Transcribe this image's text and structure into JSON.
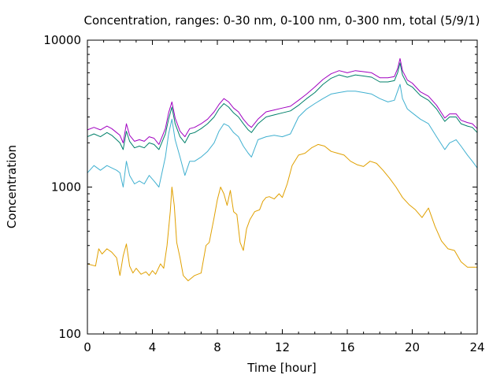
{
  "chart_data": {
    "type": "line",
    "title": "Concentration, ranges: 0-30 nm, 0-100 nm, 0-300 nm, total (5/9/1)",
    "xlabel": "Time [hour]",
    "ylabel": "Concentration",
    "xlim": [
      0,
      24
    ],
    "ylim": [
      100,
      10000
    ],
    "yscale": "log",
    "grid": false,
    "legend": "none",
    "x_ticks": [
      0,
      4,
      8,
      12,
      16,
      20,
      24
    ],
    "x_tick_labels": [
      "0",
      "4",
      "8",
      "12",
      "16",
      "20",
      "24"
    ],
    "y_ticks": [
      100,
      1000,
      10000
    ],
    "y_tick_labels": [
      "100",
      "1000",
      "10000"
    ],
    "series": [
      {
        "color": "#e0a000",
        "x": [
          0,
          0.5,
          0.7,
          0.9,
          1.2,
          1.5,
          1.8,
          2.0,
          2.2,
          2.4,
          2.6,
          2.8,
          3.0,
          3.3,
          3.6,
          3.8,
          4.0,
          4.2,
          4.5,
          4.7,
          4.9,
          5.1,
          5.2,
          5.35,
          5.5,
          5.7,
          5.9,
          6.2,
          6.6,
          7.0,
          7.3,
          7.5,
          7.8,
          8.0,
          8.2,
          8.4,
          8.6,
          8.8,
          9.0,
          9.2,
          9.4,
          9.6,
          9.8,
          10.0,
          10.3,
          10.6,
          10.8,
          11.0,
          11.2,
          11.5,
          11.8,
          12.0,
          12.3,
          12.6,
          13.0,
          13.4,
          13.8,
          14.2,
          14.6,
          15.0,
          15.4,
          15.8,
          16.2,
          16.6,
          17.0,
          17.4,
          17.8,
          18.2,
          18.6,
          19.0,
          19.4,
          19.8,
          20.2,
          20.6,
          21.0,
          21.4,
          21.8,
          22.2,
          22.6,
          23.0,
          23.4,
          23.7,
          24.0
        ],
        "y": [
          300,
          290,
          380,
          350,
          380,
          360,
          330,
          250,
          340,
          410,
          290,
          260,
          280,
          255,
          265,
          250,
          270,
          255,
          300,
          280,
          400,
          680,
          1000,
          750,
          420,
          330,
          250,
          230,
          250,
          260,
          400,
          420,
          620,
          820,
          1000,
          900,
          750,
          950,
          680,
          650,
          420,
          370,
          520,
          600,
          680,
          700,
          800,
          850,
          860,
          830,
          900,
          850,
          1050,
          1400,
          1650,
          1700,
          1850,
          1950,
          1900,
          1750,
          1700,
          1650,
          1500,
          1420,
          1380,
          1500,
          1450,
          1300,
          1150,
          1000,
          850,
          760,
          700,
          620,
          720,
          540,
          430,
          380,
          370,
          310,
          285,
          285,
          285
        ]
      },
      {
        "color": "#40b0d0",
        "x": [
          0,
          0.4,
          0.8,
          1.2,
          1.5,
          1.8,
          2.0,
          2.2,
          2.4,
          2.6,
          2.9,
          3.2,
          3.5,
          3.8,
          4.1,
          4.4,
          4.8,
          5.0,
          5.2,
          5.4,
          5.7,
          6.0,
          6.3,
          6.6,
          7.0,
          7.4,
          7.8,
          8.1,
          8.4,
          8.7,
          9.0,
          9.3,
          9.6,
          9.9,
          10.1,
          10.5,
          11.0,
          11.5,
          12.0,
          12.5,
          13.0,
          13.5,
          14.0,
          14.5,
          15.0,
          15.5,
          16.0,
          16.5,
          17.0,
          17.5,
          18.0,
          18.5,
          18.9,
          19.1,
          19.25,
          19.4,
          19.7,
          20.0,
          20.5,
          21.0,
          21.5,
          22.0,
          22.3,
          22.7,
          23.0,
          23.4,
          23.7,
          24.0
        ],
        "y": [
          1250,
          1400,
          1300,
          1400,
          1350,
          1300,
          1250,
          1000,
          1500,
          1200,
          1050,
          1100,
          1050,
          1200,
          1100,
          1000,
          1600,
          2300,
          2900,
          2100,
          1600,
          1200,
          1500,
          1500,
          1600,
          1750,
          2000,
          2400,
          2700,
          2600,
          2350,
          2200,
          1900,
          1700,
          1600,
          2100,
          2200,
          2250,
          2200,
          2300,
          3000,
          3400,
          3700,
          4000,
          4300,
          4400,
          4500,
          4500,
          4400,
          4300,
          4000,
          3800,
          3900,
          4500,
          5000,
          4000,
          3400,
          3200,
          2900,
          2700,
          2200,
          1800,
          2000,
          2100,
          1900,
          1650,
          1500,
          1350
        ]
      },
      {
        "color": "#00806a",
        "x": [
          0,
          0.4,
          0.8,
          1.2,
          1.5,
          1.8,
          2.0,
          2.2,
          2.4,
          2.6,
          2.9,
          3.2,
          3.5,
          3.8,
          4.1,
          4.4,
          4.8,
          5.0,
          5.2,
          5.4,
          5.7,
          6.0,
          6.3,
          6.6,
          7.0,
          7.4,
          7.8,
          8.1,
          8.4,
          8.7,
          9.0,
          9.3,
          9.6,
          9.9,
          10.1,
          10.5,
          11.0,
          11.5,
          12.0,
          12.5,
          13.0,
          13.5,
          14.0,
          14.5,
          15.0,
          15.5,
          16.0,
          16.5,
          17.0,
          17.5,
          18.0,
          18.5,
          18.9,
          19.1,
          19.25,
          19.4,
          19.7,
          20.0,
          20.5,
          21.0,
          21.5,
          22.0,
          22.3,
          22.7,
          23.0,
          23.4,
          23.7,
          24.0
        ],
        "y": [
          2200,
          2300,
          2200,
          2350,
          2250,
          2100,
          2000,
          1800,
          2400,
          2050,
          1850,
          1900,
          1850,
          2000,
          1950,
          1800,
          2300,
          2900,
          3500,
          2700,
          2200,
          2000,
          2300,
          2350,
          2500,
          2700,
          3000,
          3400,
          3700,
          3500,
          3200,
          3000,
          2700,
          2450,
          2350,
          2700,
          3000,
          3100,
          3200,
          3300,
          3600,
          4000,
          4400,
          5000,
          5500,
          5800,
          5600,
          5800,
          5700,
          5600,
          5200,
          5200,
          5300,
          6000,
          7000,
          5800,
          5000,
          4800,
          4200,
          3900,
          3400,
          2800,
          3000,
          3000,
          2700,
          2600,
          2550,
          2350
        ]
      },
      {
        "color": "#a000c0",
        "x": [
          0,
          0.4,
          0.8,
          1.2,
          1.5,
          1.8,
          2.0,
          2.2,
          2.4,
          2.6,
          2.9,
          3.2,
          3.5,
          3.8,
          4.1,
          4.4,
          4.8,
          5.0,
          5.2,
          5.4,
          5.7,
          6.0,
          6.3,
          6.6,
          7.0,
          7.4,
          7.8,
          8.1,
          8.4,
          8.7,
          9.0,
          9.3,
          9.6,
          9.9,
          10.1,
          10.5,
          11.0,
          11.5,
          12.0,
          12.5,
          13.0,
          13.5,
          14.0,
          14.5,
          15.0,
          15.5,
          16.0,
          16.5,
          17.0,
          17.5,
          18.0,
          18.5,
          18.9,
          19.1,
          19.25,
          19.4,
          19.7,
          20.0,
          20.5,
          21.0,
          21.5,
          22.0,
          22.3,
          22.7,
          23.0,
          23.4,
          23.7,
          24.0
        ],
        "y": [
          2450,
          2550,
          2450,
          2600,
          2500,
          2350,
          2250,
          2000,
          2700,
          2250,
          2050,
          2100,
          2050,
          2200,
          2150,
          1950,
          2500,
          3200,
          3800,
          2950,
          2400,
          2200,
          2500,
          2550,
          2700,
          2900,
          3250,
          3650,
          4000,
          3800,
          3450,
          3250,
          2900,
          2650,
          2550,
          2900,
          3250,
          3350,
          3450,
          3550,
          3900,
          4300,
          4800,
          5400,
          5900,
          6200,
          6000,
          6200,
          6100,
          6000,
          5550,
          5550,
          5650,
          6400,
          7500,
          6200,
          5350,
          5100,
          4450,
          4150,
          3600,
          2950,
          3150,
          3150,
          2850,
          2750,
          2700,
          2500
        ]
      }
    ]
  }
}
